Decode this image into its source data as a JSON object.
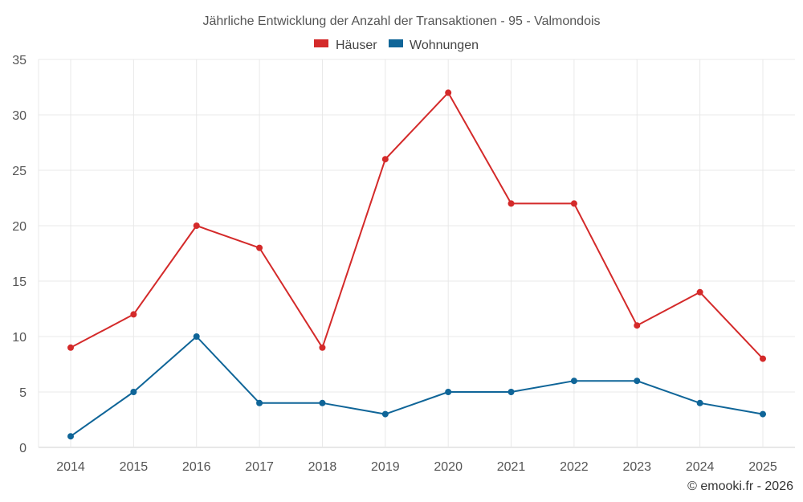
{
  "chart_data": {
    "type": "line",
    "title": "Jährliche Entwicklung der Anzahl der Transaktionen - 95 - Valmondois",
    "categories": [
      "2014",
      "2015",
      "2016",
      "2017",
      "2018",
      "2019",
      "2020",
      "2021",
      "2022",
      "2023",
      "2024",
      "2025"
    ],
    "series": [
      {
        "name": "Häuser",
        "color": "#d42a2a",
        "values": [
          9,
          12,
          20,
          18,
          9,
          26,
          32,
          22,
          22,
          11,
          14,
          8
        ]
      },
      {
        "name": "Wohnungen",
        "color": "#0f6598",
        "values": [
          1,
          5,
          10,
          4,
          4,
          3,
          5,
          5,
          6,
          6,
          4,
          3
        ]
      }
    ],
    "yticks": [
      0,
      5,
      10,
      15,
      20,
      25,
      30,
      35
    ],
    "ylim": [
      0,
      35
    ],
    "grid": true,
    "legend_position": "top-center",
    "xlabel": "",
    "ylabel": ""
  },
  "credit": "© emooki.fr - 2026"
}
